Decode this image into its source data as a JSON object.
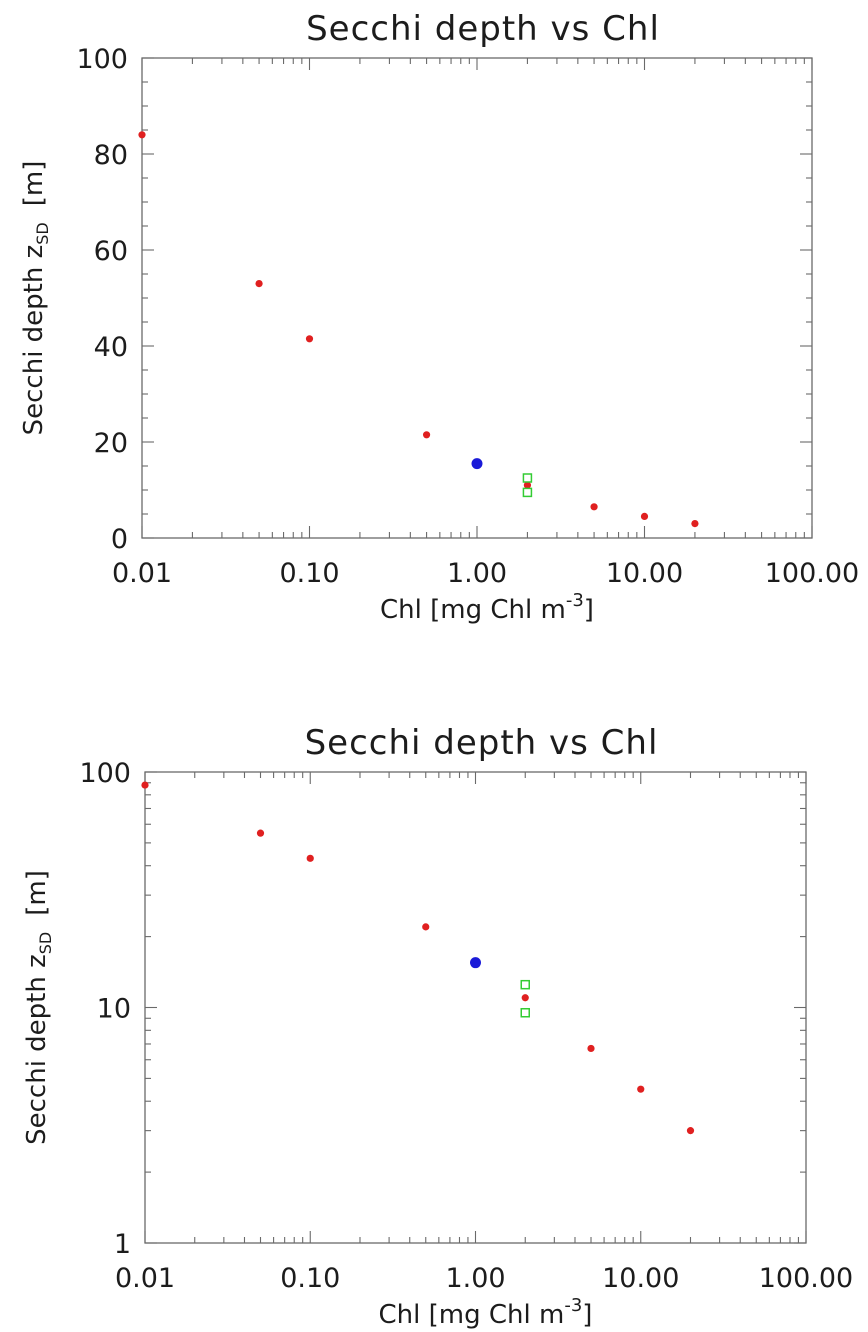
{
  "chart_data": [
    {
      "type": "scatter",
      "title": "Secchi depth vs Chl",
      "xlabel": "Chl  [mg Chl m",
      "xlabel_sup": "-3",
      "xlabel_end": "]",
      "ylabel_main": "Secchi depth z",
      "ylabel_sub": "SD",
      "ylabel_unit": "[m]",
      "x_scale": "log",
      "y_scale": "linear",
      "xlim": [
        0.01,
        100
      ],
      "ylim": [
        0,
        100
      ],
      "x_ticklabels": [
        "0.01",
        "0.10",
        "1.00",
        "10.00",
        "100.00"
      ],
      "y_ticklabels": [
        "0",
        "20",
        "40",
        "60",
        "80",
        "100"
      ],
      "series": [
        {
          "color": "#e02020",
          "marker": "dot",
          "x": [
            0.01,
            0.05,
            0.1,
            0.5,
            2,
            5,
            10,
            20
          ],
          "y": [
            84,
            53,
            41.5,
            21.5,
            11,
            6.5,
            4.5,
            3
          ]
        },
        {
          "color": "#1a1ad8",
          "marker": "big-dot",
          "x": [
            1
          ],
          "y": [
            15.5
          ]
        },
        {
          "color": "#33cc33",
          "marker": "open-square",
          "x": [
            2,
            2
          ],
          "y": [
            12.5,
            9.5
          ]
        }
      ]
    },
    {
      "type": "scatter",
      "title": "Secchi depth vs Chl",
      "xlabel": "Chl  [mg Chl m",
      "xlabel_sup": "-3",
      "xlabel_end": "]",
      "ylabel_main": "Secchi depth z",
      "ylabel_sub": "SD",
      "ylabel_unit": "[m]",
      "x_scale": "log",
      "y_scale": "log",
      "xlim": [
        0.01,
        100
      ],
      "ylim": [
        1,
        100
      ],
      "x_ticklabels": [
        "0.01",
        "0.10",
        "1.00",
        "10.00",
        "100.00"
      ],
      "y_ticklabels": [
        "1",
        "10",
        "100"
      ],
      "series": [
        {
          "color": "#e02020",
          "marker": "dot",
          "x": [
            0.01,
            0.05,
            0.1,
            0.5,
            2,
            5,
            10,
            20
          ],
          "y": [
            88,
            55,
            43,
            22,
            11,
            6.7,
            4.5,
            3
          ]
        },
        {
          "color": "#1a1ad8",
          "marker": "big-dot",
          "x": [
            1
          ],
          "y": [
            15.5
          ]
        },
        {
          "color": "#33cc33",
          "marker": "open-square",
          "x": [
            2,
            2
          ],
          "y": [
            12.5,
            9.5
          ]
        }
      ]
    }
  ]
}
